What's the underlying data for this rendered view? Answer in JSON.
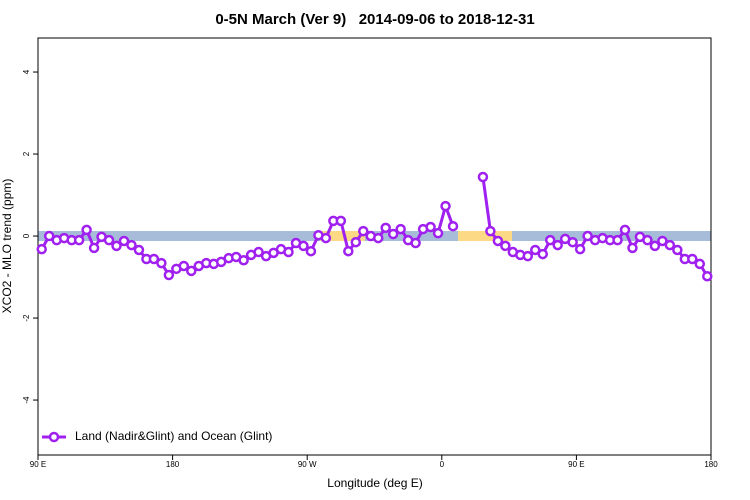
{
  "chart_data": {
    "type": "line",
    "title": "0-5N March (Ver 9)   2014-09-06 to 2018-12-31",
    "xlabel": "Longitude (deg E)",
    "ylabel": "XCO2 - MLO trend (ppm)",
    "xlim": [
      90,
      540
    ],
    "ylim": [
      -5.34,
      4.83
    ],
    "xticks": [
      {
        "value": 90,
        "label": "90 E"
      },
      180,
      {
        "value": 270,
        "label": "90 W"
      },
      {
        "value": 360,
        "label": "0"
      },
      {
        "value": 450,
        "label": "90 E"
      },
      {
        "value": 540,
        "label": "180"
      }
    ],
    "yticks": [
      -4,
      -2,
      0,
      2,
      4
    ],
    "legend": "bottom-left",
    "x": [
      92.5,
      97.5,
      102.5,
      107.5,
      112.5,
      117.5,
      122.5,
      127.5,
      132.5,
      137.5,
      142.5,
      147.5,
      152.5,
      157.5,
      162.5,
      167.5,
      172.5,
      177.5,
      182.5,
      187.5,
      192.5,
      197.5,
      202.5,
      207.5,
      212.5,
      217.5,
      222.5,
      227.5,
      232.5,
      237.5,
      242.5,
      247.5,
      252.5,
      257.5,
      262.5,
      267.5,
      272.5,
      277.5,
      282.5,
      287.5,
      292.5,
      297.5,
      302.5,
      307.5,
      312.5,
      317.5,
      322.5,
      327.5,
      332.5,
      337.5,
      342.5,
      347.5,
      352.5,
      357.5,
      362.5,
      367.5,
      null,
      null,
      null,
      387.5,
      392.5,
      397.5,
      402.5,
      407.5,
      412.5,
      417.5,
      422.5,
      427.5,
      432.5,
      437.5,
      442.5,
      447.5,
      452.5,
      457.5,
      462.5,
      467.5,
      472.5,
      477.5,
      482.5,
      487.5,
      492.5,
      497.5,
      502.5,
      507.5,
      512.5,
      517.5,
      522.5,
      527.5,
      532.5,
      537.5
    ],
    "series": [
      {
        "name": "Land (Nadir&Glint) and Ocean (Glint)",
        "color": "#a020f0",
        "values": [
          -0.32,
          0,
          -0.1,
          -0.05,
          -0.1,
          -0.1,
          0.15,
          -0.29,
          -0.02,
          -0.1,
          -0.24,
          -0.12,
          -0.22,
          -0.34,
          -0.56,
          -0.56,
          -0.66,
          -0.95,
          -0.8,
          -0.73,
          -0.85,
          -0.73,
          -0.66,
          -0.68,
          -0.63,
          -0.54,
          -0.51,
          -0.59,
          -0.46,
          -0.39,
          -0.49,
          -0.41,
          -0.32,
          -0.39,
          -0.17,
          -0.24,
          -0.37,
          0.02,
          -0.05,
          0.37,
          0.37,
          -0.37,
          -0.15,
          0.12,
          0,
          -0.05,
          0.2,
          0.05,
          0.17,
          -0.1,
          -0.17,
          0.17,
          0.22,
          0.07,
          0.73,
          0.24,
          null,
          null,
          null,
          1.44,
          0.12,
          -0.12,
          -0.24,
          -0.39,
          -0.46,
          -0.49,
          -0.34,
          -0.44,
          -0.1,
          -0.22,
          -0.07,
          -0.15,
          -0.32,
          0,
          -0.1,
          -0.05,
          -0.1,
          -0.1,
          0.15,
          -0.29,
          -0.02,
          -0.1,
          -0.24,
          -0.12,
          -0.22,
          -0.34,
          -0.56,
          -0.56,
          -0.68,
          -0.98
        ]
      }
    ]
  }
}
